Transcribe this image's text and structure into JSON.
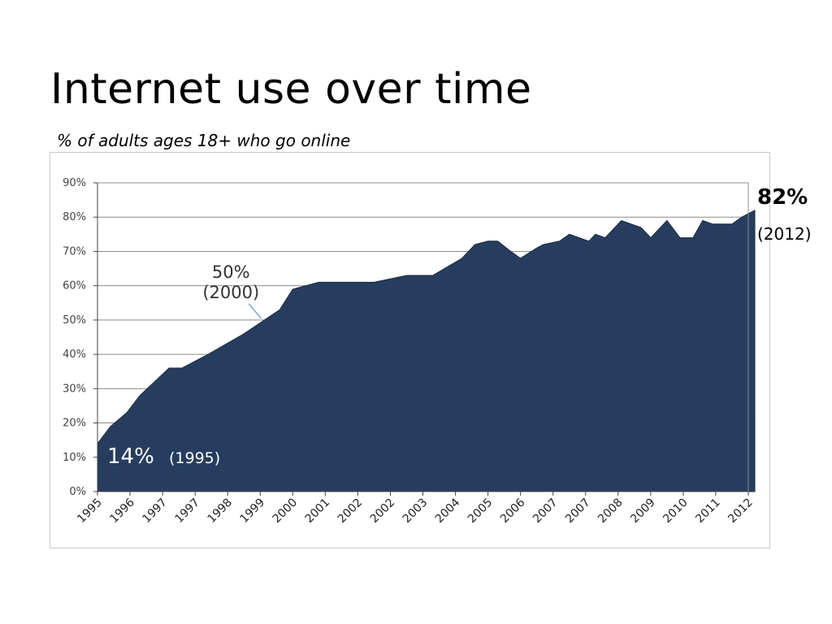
{
  "title": "Internet use over time",
  "subtitle": "% of adults ages 18+ who go online",
  "chart_data": {
    "type": "area",
    "title": "Internet use over time",
    "subtitle": "% of adults ages 18+ who go online",
    "xlabel": "",
    "ylabel": "",
    "ylim": [
      0,
      90
    ],
    "yticks": [
      "0%",
      "10%",
      "20%",
      "30%",
      "40%",
      "50%",
      "60%",
      "70%",
      "80%",
      "90%"
    ],
    "xticks": [
      "1995",
      "1996",
      "1997",
      "1997",
      "1998",
      "1999",
      "2000",
      "2001",
      "2002",
      "2002",
      "2003",
      "2004",
      "2005",
      "2006",
      "2007",
      "2007",
      "2008",
      "2009",
      "2010",
      "2011",
      "2012"
    ],
    "grid": true,
    "fill_color": "#263d5e",
    "series": [
      {
        "x": [
          0,
          0.4,
          0.9,
          1.3,
          2.2,
          2.6,
          3.4,
          4.5,
          5.6,
          6.0,
          6.8,
          7.4,
          7.9,
          8.5,
          9.5,
          10.3,
          11.2,
          11.6,
          12.0,
          12.3,
          12.7,
          13.0,
          13.5,
          13.7,
          14.2,
          14.5,
          14.8,
          15.1,
          15.3,
          15.6,
          16.1,
          16.4,
          16.7,
          17.0,
          17.5,
          17.9,
          18.3,
          18.6,
          18.9,
          19.1,
          19.5,
          19.8,
          20.2
        ],
        "values": [
          14,
          19,
          23,
          28,
          36,
          36,
          40,
          46,
          53,
          59,
          61,
          61,
          61,
          61,
          63,
          63,
          68,
          72,
          73,
          73,
          70,
          68,
          71,
          72,
          73,
          75,
          74,
          73,
          75,
          74,
          79,
          78,
          77,
          74,
          79,
          74,
          74,
          79,
          78,
          78,
          78,
          80,
          82
        ]
      }
    ],
    "annotations": [
      {
        "text": "50%",
        "sub": "(2000)",
        "x": 5.1,
        "y": 50
      },
      {
        "text": "14%",
        "sub": "(1995)",
        "x": 0,
        "y": 14
      },
      {
        "text": "82%",
        "sub": "(2012)",
        "x": 20.2,
        "y": 82
      }
    ]
  },
  "end_label": {
    "value": "82%",
    "year": "(2012)"
  }
}
